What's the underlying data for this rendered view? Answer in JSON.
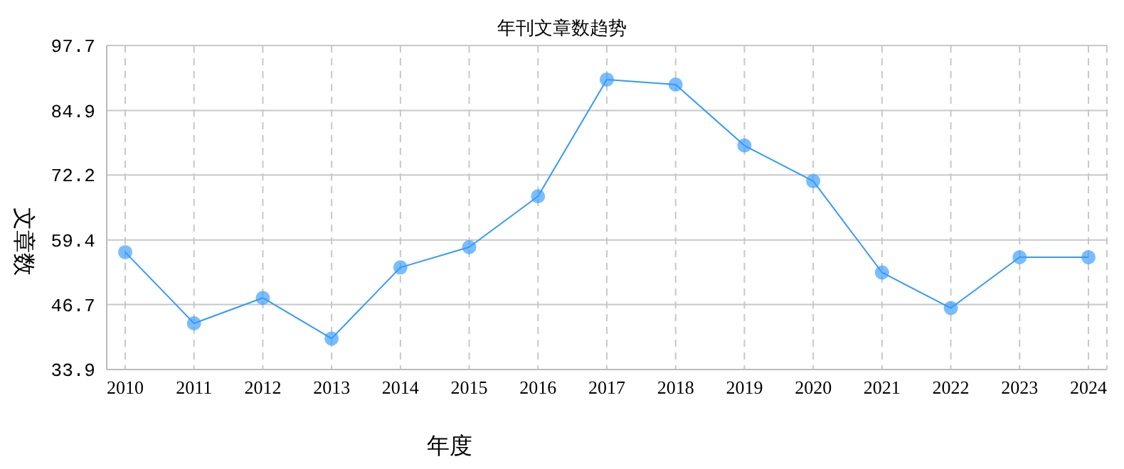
{
  "chart_data": {
    "type": "line",
    "title": "年刊文章数趋势",
    "xlabel": "年度",
    "ylabel": "文章数",
    "categories": [
      "2010",
      "2011",
      "2012",
      "2013",
      "2014",
      "2015",
      "2016",
      "2017",
      "2018",
      "2019",
      "2020",
      "2021",
      "2022",
      "2023",
      "2024"
    ],
    "series": [
      {
        "color": "#3399ff",
        "values": [
          57,
          43,
          48,
          40,
          54,
          58,
          68,
          91,
          90,
          78,
          71,
          53,
          46,
          56,
          56
        ]
      }
    ],
    "ylim": [
      33.9,
      97.7
    ],
    "yticks": [
      33.9,
      46.7,
      59.4,
      72.2,
      84.9,
      97.7
    ],
    "grid": true,
    "marker": "circle",
    "line_style": "solid",
    "legend": false
  }
}
